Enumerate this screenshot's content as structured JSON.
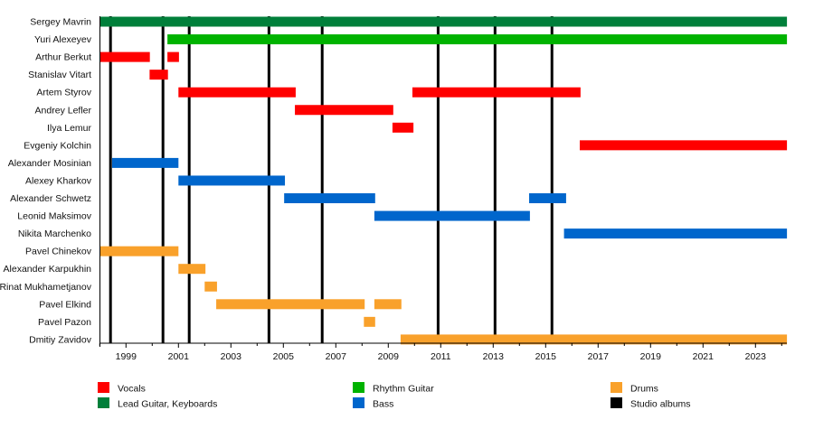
{
  "chart_data": {
    "type": "timeline",
    "xlim": [
      1998.0,
      2024.2
    ],
    "x_ticks": [
      1999,
      2001,
      2003,
      2005,
      2007,
      2009,
      2011,
      2013,
      2015,
      2017,
      2019,
      2021,
      2023
    ],
    "grid": false,
    "legend_position": "bottom",
    "roles": [
      {
        "key": "vocals",
        "name": "Vocals",
        "color": "#ff0000"
      },
      {
        "key": "lead",
        "name": "Lead Guitar, Keyboards",
        "color": "#007f3a"
      },
      {
        "key": "rhythm",
        "name": "Rhythm Guitar",
        "color": "#00b300"
      },
      {
        "key": "bass",
        "name": "Bass",
        "color": "#0066cc"
      },
      {
        "key": "drums",
        "name": "Drums",
        "color": "#f9a12b"
      },
      {
        "key": "albums",
        "name": "Studio albums",
        "color": "#000000"
      }
    ],
    "albums": [
      1998.41,
      2000.41,
      2001.41,
      2004.45,
      2006.48,
      2010.9,
      2013.07,
      2015.24
    ],
    "members": [
      {
        "name": "Sergey Mavrin",
        "role": "lead",
        "periods": [
          [
            1998.0,
            2024.2
          ]
        ]
      },
      {
        "name": "Yuri Alexeyev",
        "role": "rhythm",
        "periods": [
          [
            2000.58,
            2024.2
          ]
        ]
      },
      {
        "name": "Arthur Berkut",
        "role": "vocals",
        "periods": [
          [
            1998.0,
            1999.91
          ],
          [
            2000.58,
            2001.02
          ]
        ]
      },
      {
        "name": "Stanislav Vitart",
        "role": "vocals",
        "periods": [
          [
            1999.9,
            2000.6
          ]
        ]
      },
      {
        "name": "Artem Styrov",
        "role": "vocals",
        "periods": [
          [
            2001.0,
            2005.47
          ],
          [
            2009.92,
            2016.33
          ]
        ]
      },
      {
        "name": "Andrey Lefler",
        "role": "vocals",
        "periods": [
          [
            2005.44,
            2009.19
          ]
        ]
      },
      {
        "name": "Ilya Lemur",
        "role": "vocals",
        "periods": [
          [
            2009.16,
            2009.96
          ]
        ]
      },
      {
        "name": "Evgeniy Kolchin",
        "role": "vocals",
        "periods": [
          [
            2016.3,
            2024.2
          ]
        ]
      },
      {
        "name": "Alexander Mosinian",
        "role": "bass",
        "periods": [
          [
            1998.47,
            2001.0
          ]
        ]
      },
      {
        "name": "Alexey Kharkov",
        "role": "bass",
        "periods": [
          [
            2001.0,
            2005.06
          ]
        ]
      },
      {
        "name": "Alexander Schwetz",
        "role": "bass",
        "periods": [
          [
            2005.03,
            2008.5
          ],
          [
            2014.37,
            2015.78
          ]
        ]
      },
      {
        "name": "Leonid Maksimov",
        "role": "bass",
        "periods": [
          [
            2008.47,
            2014.4
          ]
        ]
      },
      {
        "name": "Nikita Marchenko",
        "role": "bass",
        "periods": [
          [
            2015.7,
            2024.2
          ]
        ]
      },
      {
        "name": "Pavel Chinekov",
        "role": "drums",
        "periods": [
          [
            1998.0,
            2001.0
          ]
        ]
      },
      {
        "name": "Alexander Karpukhin",
        "role": "drums",
        "periods": [
          [
            2001.0,
            2002.03
          ]
        ]
      },
      {
        "name": "Rinat Mukhametjanov",
        "role": "drums",
        "periods": [
          [
            2002.0,
            2002.47
          ]
        ]
      },
      {
        "name": "Pavel Elkind",
        "role": "drums",
        "periods": [
          [
            2002.44,
            2008.1
          ],
          [
            2008.47,
            2009.5
          ]
        ]
      },
      {
        "name": "Pavel Pazon",
        "role": "drums",
        "periods": [
          [
            2008.07,
            2008.5
          ]
        ]
      },
      {
        "name": "Dmitiy Zavidov",
        "role": "drums",
        "periods": [
          [
            2009.47,
            2024.2
          ]
        ]
      }
    ]
  }
}
